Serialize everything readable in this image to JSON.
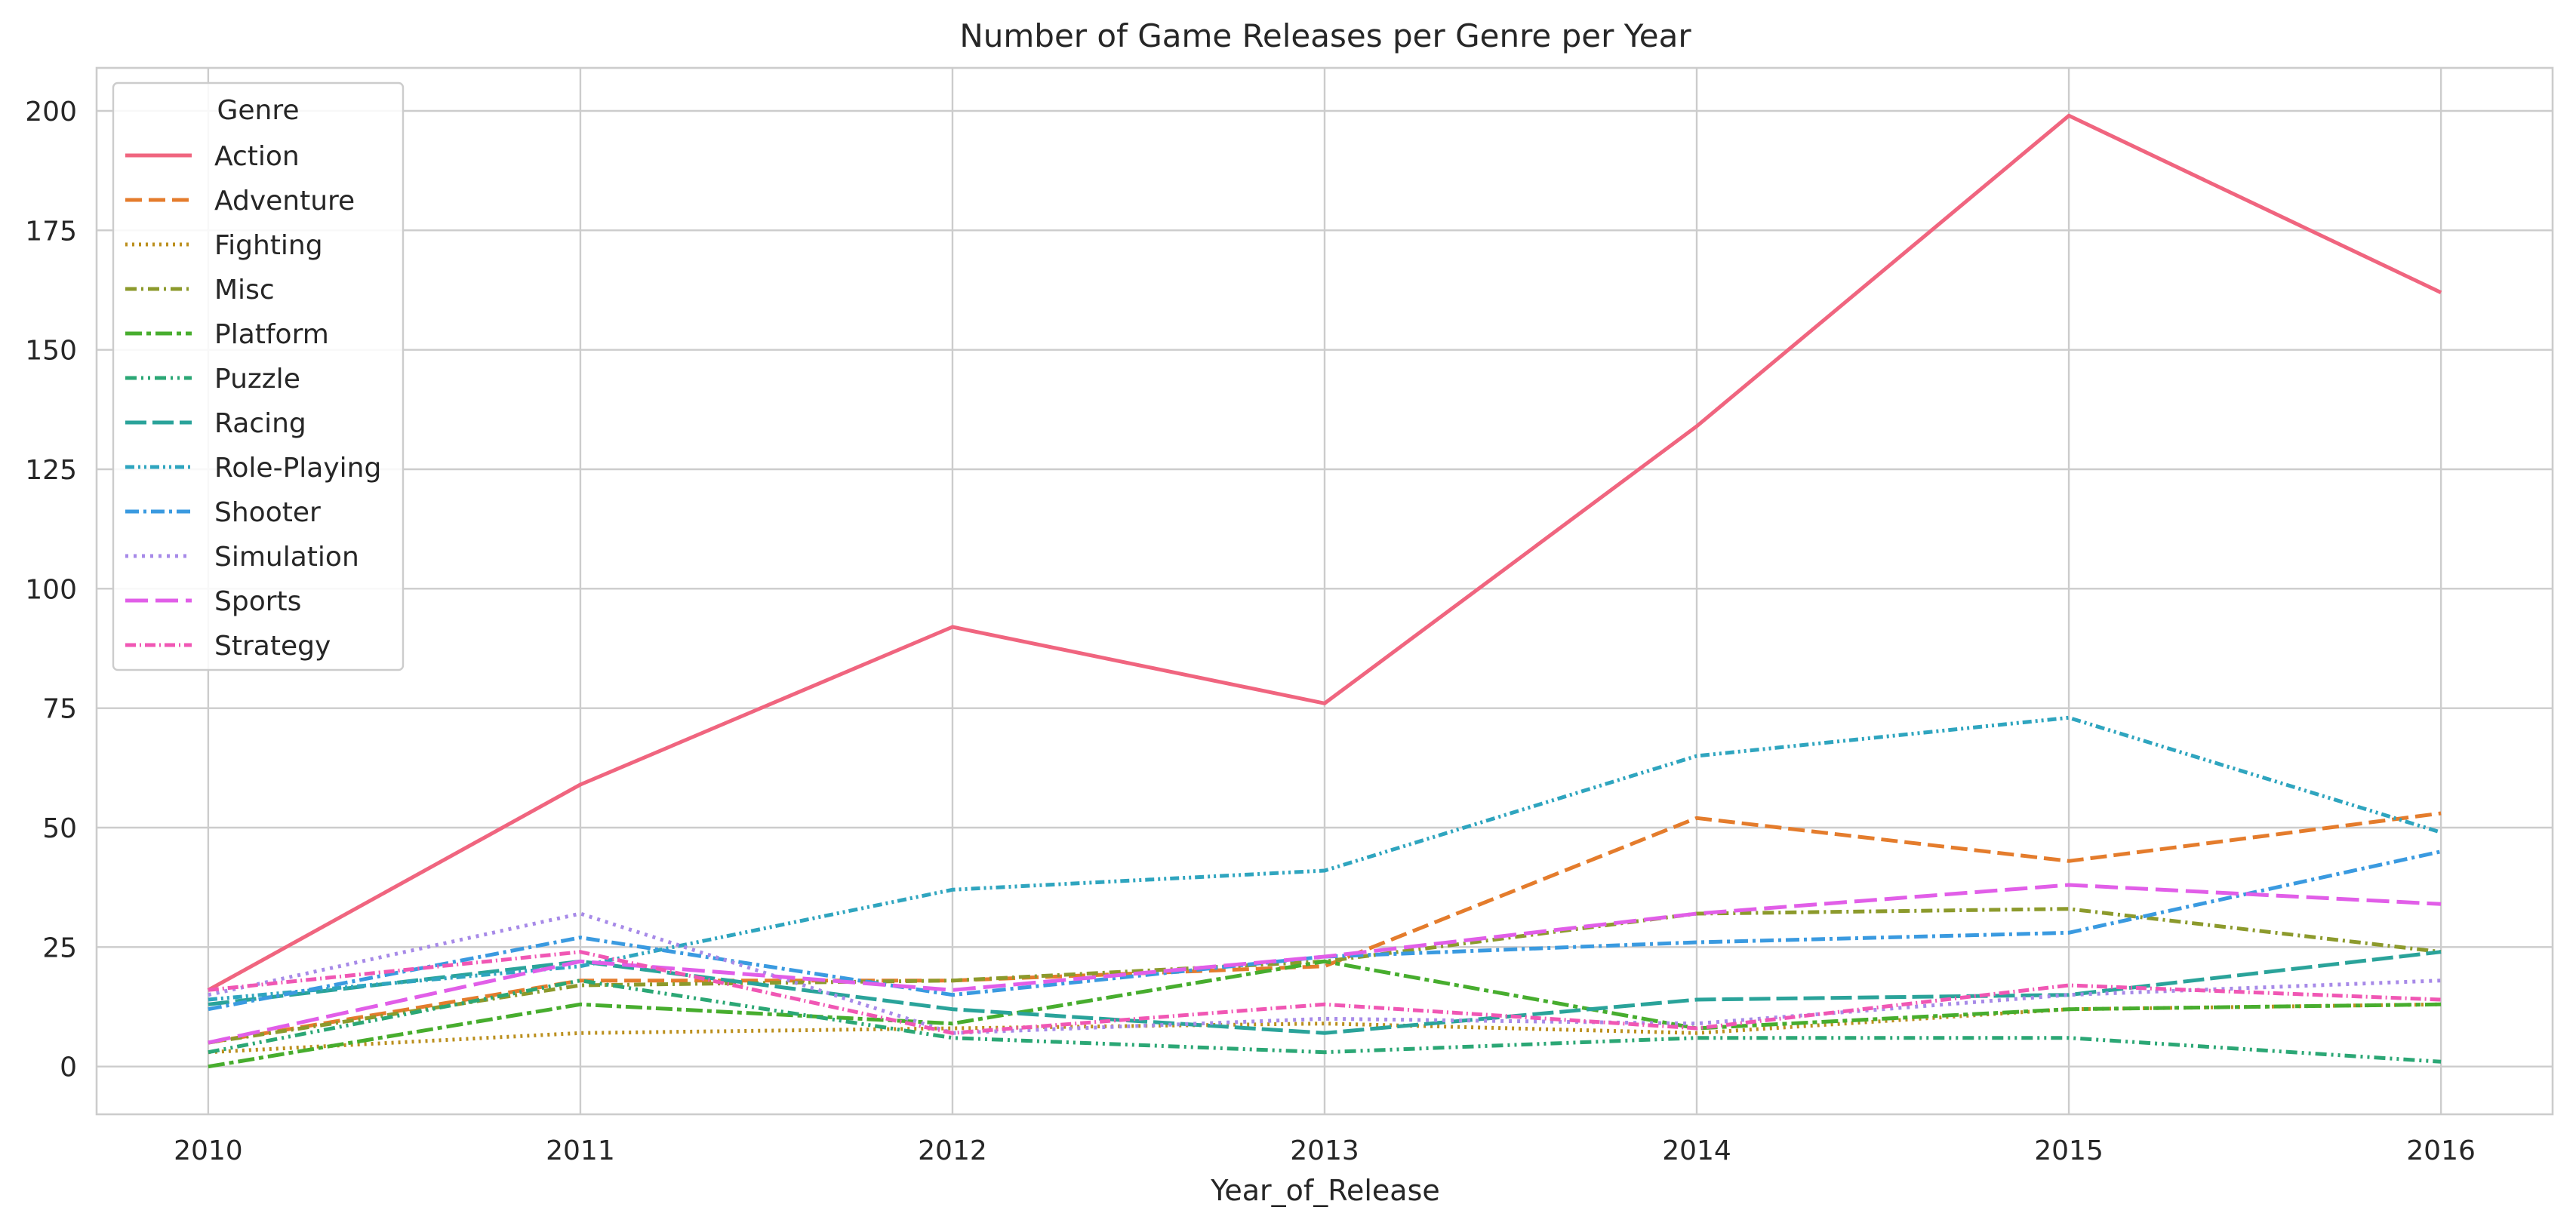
{
  "chart_data": {
    "type": "line",
    "title": "Number of Game Releases per Genre per Year",
    "xlabel": "Year_of_Release",
    "ylabel": "",
    "x": [
      2010,
      2011,
      2012,
      2013,
      2014,
      2015,
      2016
    ],
    "x_tick_labels": [
      "2010",
      "2011",
      "2012",
      "2013",
      "2014",
      "2015",
      "2016"
    ],
    "xlim": [
      2009.7,
      2016.3
    ],
    "ylim": [
      -10,
      209
    ],
    "y_ticks": [
      0,
      25,
      50,
      75,
      100,
      125,
      150,
      175,
      200
    ],
    "grid": true,
    "legend": {
      "title": "Genre",
      "placement": "top-left"
    },
    "series": [
      {
        "name": "Action",
        "color": "#f0657f",
        "dash": "solid",
        "values": [
          16,
          59,
          92,
          76,
          134,
          199,
          162
        ]
      },
      {
        "name": "Adventure",
        "color": "#e47c2c",
        "dash": "dashed",
        "values": [
          5,
          18,
          18,
          21,
          52,
          43,
          53
        ]
      },
      {
        "name": "Fighting",
        "color": "#bb8f1d",
        "dash": "dotted",
        "values": [
          3,
          7,
          8,
          9,
          7,
          12,
          13
        ]
      },
      {
        "name": "Misc",
        "color": "#8c9a2c",
        "dash": "dashdot",
        "values": [
          5,
          17,
          18,
          22,
          32,
          33,
          24
        ]
      },
      {
        "name": "Platform",
        "color": "#47ad2e",
        "dash": "dashdot2",
        "values": [
          0,
          13,
          9,
          22,
          8,
          12,
          13
        ]
      },
      {
        "name": "Puzzle",
        "color": "#2ba775",
        "dash": "dashdotdot",
        "values": [
          3,
          18,
          6,
          3,
          6,
          6,
          1
        ]
      },
      {
        "name": "Racing",
        "color": "#2aa39a",
        "dash": "longdash",
        "values": [
          13,
          22,
          12,
          7,
          14,
          15,
          24
        ]
      },
      {
        "name": "Role-Playing",
        "color": "#2fa5bf",
        "dash": "dashdot3",
        "values": [
          14,
          21,
          37,
          41,
          65,
          73,
          49
        ]
      },
      {
        "name": "Shooter",
        "color": "#3a9ae0",
        "dash": "dashdot4",
        "values": [
          12,
          27,
          15,
          23,
          26,
          28,
          45
        ]
      },
      {
        "name": "Simulation",
        "color": "#a78ae8",
        "dash": "dotted2",
        "values": [
          15,
          32,
          7,
          10,
          9,
          15,
          18
        ]
      },
      {
        "name": "Sports",
        "color": "#e15ee8",
        "dash": "longdash2",
        "values": [
          5,
          22,
          16,
          23,
          32,
          38,
          34
        ]
      },
      {
        "name": "Strategy",
        "color": "#f057b4",
        "dash": "dashdot5",
        "values": [
          16,
          24,
          7,
          13,
          8,
          17,
          14
        ]
      }
    ]
  }
}
